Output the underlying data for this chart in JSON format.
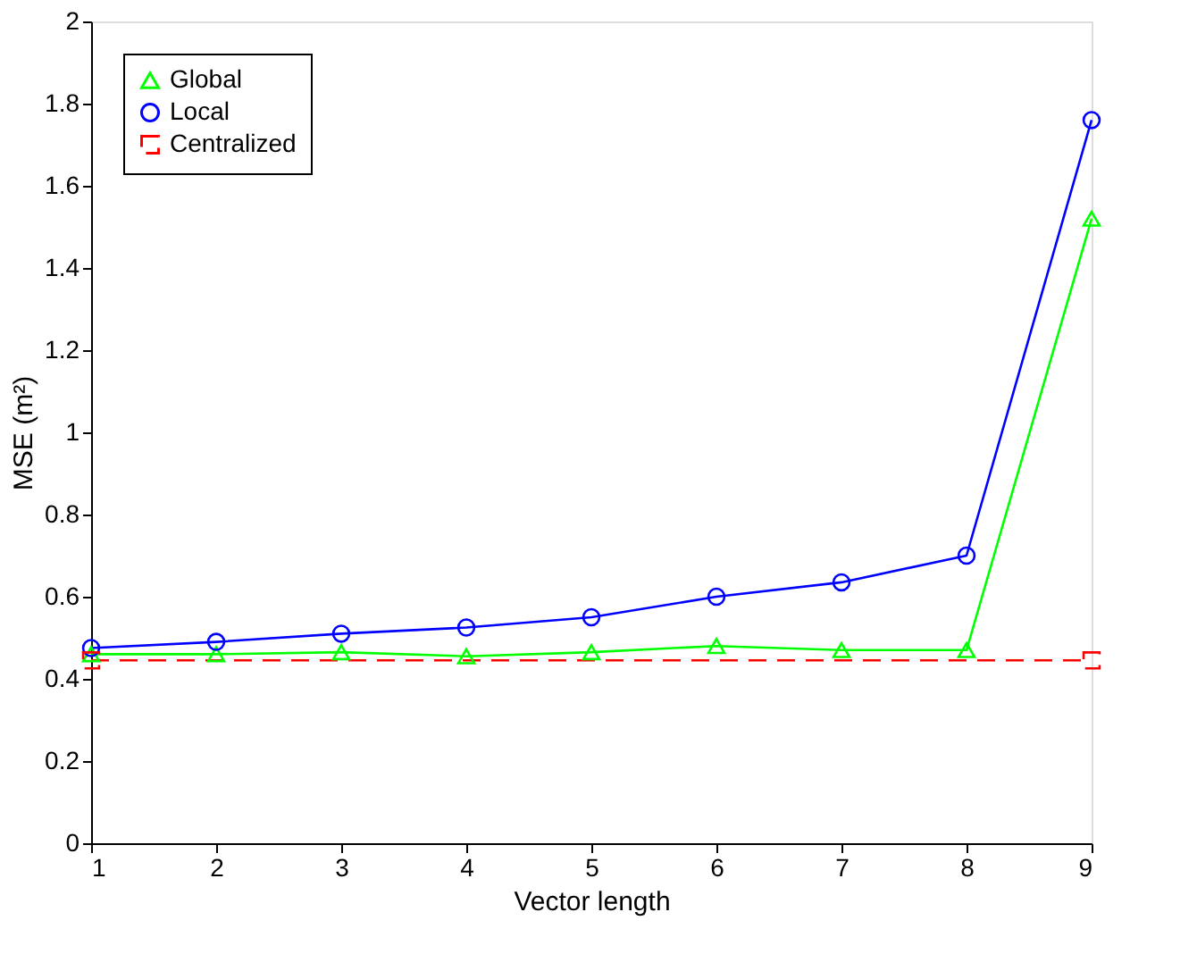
{
  "chart_data": {
    "type": "line",
    "xlabel": "Vector length",
    "ylabel": "MSE (m²)",
    "xlim": [
      1,
      9
    ],
    "xticks": [
      1,
      2,
      3,
      4,
      5,
      6,
      7,
      8,
      9
    ],
    "ylim": [
      0,
      2
    ],
    "yticks": [
      0,
      0.2,
      0.4,
      0.6,
      0.8,
      1,
      1.2,
      1.4,
      1.6,
      1.8,
      2
    ],
    "grid": false,
    "legend": "top left",
    "series": [
      {
        "name": "Global",
        "color": "#00ff00",
        "marker": "triangle",
        "line_style": "solid",
        "x": [
          1,
          2,
          3,
          4,
          5,
          6,
          7,
          8,
          9
        ],
        "values": [
          0.46,
          0.46,
          0.465,
          0.455,
          0.465,
          0.48,
          0.47,
          0.47,
          1.52
        ]
      },
      {
        "name": "Local",
        "color": "#0000ff",
        "marker": "circle",
        "line_style": "solid",
        "x": [
          1,
          2,
          3,
          4,
          5,
          6,
          7,
          8,
          9
        ],
        "values": [
          0.475,
          0.49,
          0.51,
          0.525,
          0.55,
          0.6,
          0.635,
          0.7,
          1.76
        ]
      },
      {
        "name": "Centralized",
        "color": "#ff0000",
        "marker": "square",
        "line_style": "dashed",
        "x": [
          1,
          9
        ],
        "values": [
          0.445,
          0.445
        ]
      }
    ]
  }
}
